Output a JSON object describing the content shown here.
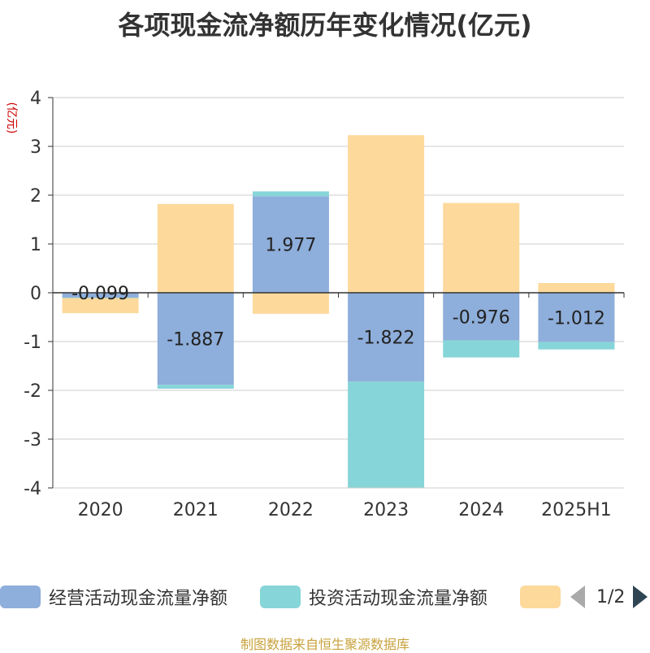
{
  "title": "各项现金流净额历年变化情况(亿元)",
  "source": "制图数据来自恒生聚源数据库",
  "pager": {
    "text": "1/2"
  },
  "chart_data": {
    "type": "bar",
    "stacked": true,
    "ylabel": "(亿元)",
    "ylim": [
      -4,
      4
    ],
    "yticks": [
      "4",
      "3",
      "2",
      "1",
      "0",
      "-1",
      "-2",
      "-3",
      "-4"
    ],
    "categories": [
      "2020",
      "2021",
      "2022",
      "2023",
      "2024",
      "2025H1"
    ],
    "series": [
      {
        "name": "经营活动现金流量净额",
        "color": "#8eaedb",
        "values": [
          -0.099,
          -1.887,
          1.977,
          -1.822,
          -0.976,
          -1.012
        ],
        "labels": [
          "-0.099",
          "-1.887",
          "1.977",
          "-1.822",
          "-0.976",
          "-1.012"
        ]
      },
      {
        "name": "投资活动现金流量净额",
        "color": "#86d5d8",
        "values": [
          -0.01,
          -0.08,
          0.1,
          -2.17,
          -0.35,
          -0.15
        ]
      },
      {
        "name": "",
        "color": "#fdd99b",
        "values": [
          -0.31,
          1.82,
          -0.43,
          3.23,
          1.84,
          0.2
        ]
      }
    ],
    "grid": true,
    "legend_position": "bottom"
  }
}
